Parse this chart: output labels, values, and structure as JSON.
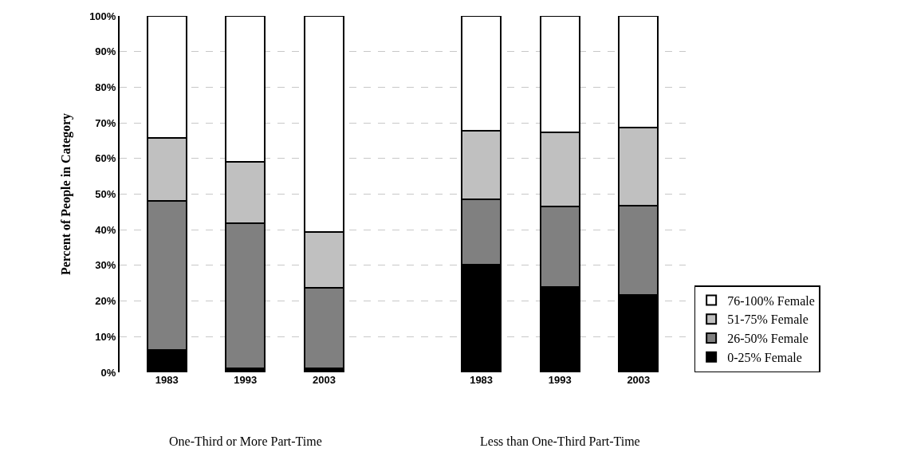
{
  "chart_data": {
    "type": "bar",
    "stacked": true,
    "ylabel": "Percent of People in Category",
    "categories": [
      "1983",
      "1993",
      "2003",
      null,
      "1983",
      "1993",
      "2003"
    ],
    "series": [
      {
        "name": "0-25% Female",
        "color": "#000000",
        "values": [
          6.3,
          1.2,
          1.1,
          null,
          30.1,
          23.9,
          21.8
        ]
      },
      {
        "name": "26-50% Female",
        "color": "#808080",
        "values": [
          41.9,
          40.6,
          22.6,
          null,
          18.5,
          22.6,
          25.0
        ]
      },
      {
        "name": "51-75% Female",
        "color": "#c0c0c0",
        "values": [
          17.6,
          17.3,
          15.7,
          null,
          19.1,
          20.8,
          21.8
        ]
      },
      {
        "name": "76-100% Female",
        "color": "#ffffff",
        "values": [
          34.2,
          40.9,
          60.6,
          null,
          32.3,
          32.7,
          31.4
        ]
      }
    ],
    "ylim": [
      0,
      100
    ],
    "yticks": [
      {
        "value": 0,
        "label": "0%"
      },
      {
        "value": 10,
        "label": "10%"
      },
      {
        "value": 20,
        "label": "20%"
      },
      {
        "value": 30,
        "label": "30%"
      },
      {
        "value": 40,
        "label": "40%"
      },
      {
        "value": 50,
        "label": "50%"
      },
      {
        "value": 60,
        "label": "60%"
      },
      {
        "value": 70,
        "label": "70%"
      },
      {
        "value": 80,
        "label": "80%"
      },
      {
        "value": 90,
        "label": "90%"
      },
      {
        "value": 100,
        "label": "100%"
      }
    ],
    "grid": "y",
    "legend": "right",
    "annotations": [
      "One-Third or More Part-Time",
      "Less than One-Third Part-Time"
    ]
  }
}
